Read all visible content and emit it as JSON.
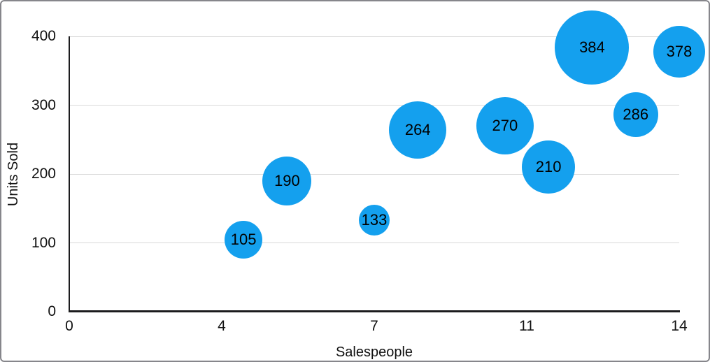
{
  "chart": {
    "colors": {
      "bubble_fill": "#14A0EE",
      "grid_line": "#D9D9D9",
      "axis_line": "#1C1C1E",
      "text": "#111111",
      "frame_border": "#86868B"
    }
  },
  "chart_data": {
    "type": "scatter",
    "subtype": "bubble",
    "title": "",
    "xlabel": "Salespeople",
    "ylabel": "Units Sold",
    "xlim": [
      0,
      14
    ],
    "ylim": [
      0,
      400
    ],
    "grid": "horizontal gridlines at 100, 200, 300, 400",
    "legend_position": "none",
    "x_ticks": [
      {
        "value": 0,
        "label": "0"
      },
      {
        "value": 3.5,
        "label": "4"
      },
      {
        "value": 7,
        "label": "7"
      },
      {
        "value": 10.5,
        "label": "11"
      },
      {
        "value": 14,
        "label": "14"
      }
    ],
    "y_ticks": [
      {
        "value": 0,
        "label": "0"
      },
      {
        "value": 100,
        "label": "100"
      },
      {
        "value": 200,
        "label": "200"
      },
      {
        "value": 300,
        "label": "300"
      },
      {
        "value": 400,
        "label": "400"
      }
    ],
    "points": [
      {
        "x": 4,
        "y": 105,
        "label": "105",
        "radius_px": 27
      },
      {
        "x": 5,
        "y": 190,
        "label": "190",
        "radius_px": 35
      },
      {
        "x": 7,
        "y": 133,
        "label": "133",
        "radius_px": 22
      },
      {
        "x": 8,
        "y": 264,
        "label": "264",
        "radius_px": 41
      },
      {
        "x": 10,
        "y": 270,
        "label": "270",
        "radius_px": 41
      },
      {
        "x": 11,
        "y": 210,
        "label": "210",
        "radius_px": 38
      },
      {
        "x": 12,
        "y": 384,
        "label": "384",
        "radius_px": 53
      },
      {
        "x": 13,
        "y": 286,
        "label": "286",
        "radius_px": 32
      },
      {
        "x": 14,
        "y": 378,
        "label": "378",
        "radius_px": 37
      }
    ]
  }
}
